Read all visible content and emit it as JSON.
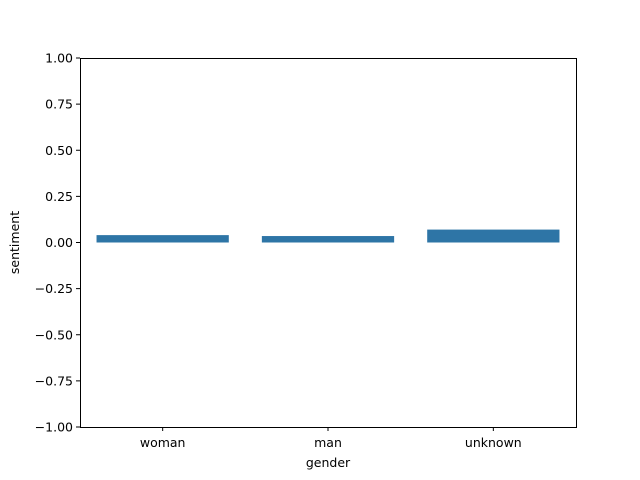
{
  "colors": {
    "bar": "#2e75a6",
    "axis": "#000000",
    "background": "#ffffff"
  },
  "chart_data": {
    "type": "bar",
    "categories": [
      "woman",
      "man",
      "unknown"
    ],
    "values": [
      0.04,
      0.035,
      0.07
    ],
    "xlabel": "gender",
    "ylabel": "sentiment",
    "ylim": [
      -1.0,
      1.0
    ],
    "yticks": [
      -1.0,
      -0.75,
      -0.5,
      -0.25,
      0.0,
      0.25,
      0.5,
      0.75,
      1.0
    ],
    "ytick_labels": [
      "−1.00",
      "−0.75",
      "−0.50",
      "−0.25",
      "0.00",
      "0.25",
      "0.50",
      "0.75",
      "1.00"
    ],
    "grid": false,
    "legend": "none"
  }
}
